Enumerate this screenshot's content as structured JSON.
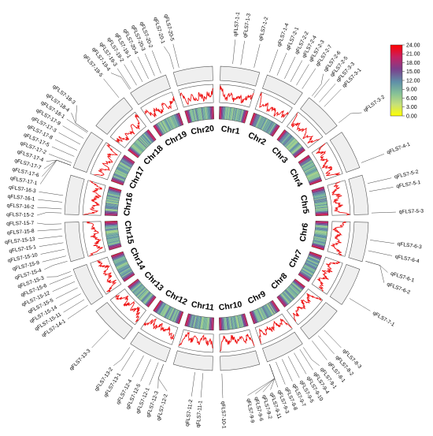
{
  "legend": {
    "ticks": [
      "24.00",
      "21.00",
      "18.00",
      "15.00",
      "12.00",
      "9.00",
      "6.00",
      "3.00",
      "0.00"
    ],
    "colors": [
      "#ff0000",
      "#c62262",
      "#7b3f8c",
      "#5f8fa8",
      "#84c098",
      "#c6e07a",
      "#ffff00"
    ]
  },
  "chromosomes": [
    {
      "name": "Chr1",
      "start": 1.5,
      "end": 16.5,
      "qtls": [
        {
          "name": "qFLS7-1-1",
          "pos": 6
        },
        {
          "name": "qFLS7-1-3",
          "pos": 9
        },
        {
          "name": "qFLS7-1-2",
          "pos": 14
        }
      ]
    },
    {
      "name": "Chr2",
      "start": 19.5,
      "end": 34.5,
      "qtls": [
        {
          "name": "qFLS7-1-4",
          "pos": 20
        },
        {
          "name": "qFLS7-2-1",
          "pos": 23
        },
        {
          "name": "qFLS7-2-2",
          "pos": 26
        },
        {
          "name": "qFLS7-2-4",
          "pos": 28.5
        },
        {
          "name": "qFLS7-2-3",
          "pos": 31
        },
        {
          "name": "qFLS7-2-7",
          "pos": 33.5
        }
      ]
    },
    {
      "name": "Chr3",
      "start": 37.5,
      "end": 52.5,
      "qtls": [
        {
          "name": "qFLS7-2-6",
          "pos": 36.5
        },
        {
          "name": "qFLS7-2-5",
          "pos": 39
        },
        {
          "name": "qFLS7-3-3",
          "pos": 41.5
        },
        {
          "name": "qFLS7-3-1",
          "pos": 44
        },
        {
          "name": "qFLS7-3-2",
          "pos": 54
        }
      ]
    },
    {
      "name": "Chr4",
      "start": 55.5,
      "end": 70.5,
      "qtls": [
        {
          "name": "qFLS7-4-1",
          "pos": 69
        }
      ]
    },
    {
      "name": "Chr5",
      "start": 73.5,
      "end": 88.5,
      "qtls": [
        {
          "name": "qFLS7-5-2",
          "pos": 77
        },
        {
          "name": "qFLS7-5-1",
          "pos": 80
        },
        {
          "name": "qFLS7-5-3",
          "pos": 88
        }
      ]
    },
    {
      "name": "Chr6",
      "start": 91.5,
      "end": 106.5,
      "qtls": [
        {
          "name": "qFLS7-6-3",
          "pos": 98
        },
        {
          "name": "qFLS7-6-4",
          "pos": 102
        },
        {
          "name": "qFLS7-6-1",
          "pos": 107.5
        },
        {
          "name": "qFLS7-6-2",
          "pos": 111
        }
      ]
    },
    {
      "name": "Chr7",
      "start": 109.5,
      "end": 124.5,
      "qtls": [
        {
          "name": "qFLS7-7-1",
          "pos": 121
        }
      ]
    },
    {
      "name": "Chr8",
      "start": 127.5,
      "end": 142.5,
      "qtls": [
        {
          "name": "qFLS7-8-3",
          "pos": 136
        },
        {
          "name": "qFLS7-8-2",
          "pos": 139
        },
        {
          "name": "qFLS7-8-1",
          "pos": 142
        }
      ]
    },
    {
      "name": "Chr9",
      "start": 145.5,
      "end": 160.5,
      "qtls": [
        {
          "name": "qFLS7-9-1",
          "pos": 145
        },
        {
          "name": "qFLS7-9-4",
          "pos": 147.5
        },
        {
          "name": "qFLS7-9-10",
          "pos": 150
        },
        {
          "name": "qFLS7-9-5",
          "pos": 152.5
        },
        {
          "name": "qFLS7-9-7",
          "pos": 155
        },
        {
          "name": "qFLS7-9-8",
          "pos": 157.5
        },
        {
          "name": "qFLS7-9-3",
          "pos": 160
        },
        {
          "name": "qFLS7-9-11",
          "pos": 162.5
        },
        {
          "name": "qFLS7-9-2",
          "pos": 165
        },
        {
          "name": "qFLS7-9-6",
          "pos": 167.5
        },
        {
          "name": "qFLS7-9-9",
          "pos": 170
        }
      ]
    },
    {
      "name": "Chr10",
      "start": 163.5,
      "end": 178.5,
      "qtls": [
        {
          "name": "qFLS7-10-1",
          "pos": 178
        }
      ]
    },
    {
      "name": "Chr11",
      "start": 181.5,
      "end": 196.5,
      "qtls": [
        {
          "name": "qFLS7-11-1",
          "pos": 185
        },
        {
          "name": "qFLS7-11-2",
          "pos": 188
        }
      ]
    },
    {
      "name": "Chr12",
      "start": 199.5,
      "end": 214.5,
      "qtls": [
        {
          "name": "qFLS7-12-2",
          "pos": 196
        },
        {
          "name": "qFLS7-12-3",
          "pos": 199
        },
        {
          "name": "qFLS7-12-1",
          "pos": 202
        },
        {
          "name": "qFLS7-12-5",
          "pos": 205
        },
        {
          "name": "qFLS7-12-4",
          "pos": 208
        },
        {
          "name": "qFLS7-13-1",
          "pos": 212
        },
        {
          "name": "qFLS7-13-2",
          "pos": 215
        }
      ]
    },
    {
      "name": "Chr13",
      "start": 217.5,
      "end": 232.5,
      "qtls": [
        {
          "name": "qFLS7-13-3",
          "pos": 224
        }
      ]
    },
    {
      "name": "Chr14",
      "start": 235.5,
      "end": 250.5,
      "qtls": [
        {
          "name": "qFLS7-14-1",
          "pos": 236
        },
        {
          "name": "qFLS7-15-11",
          "pos": 238.5
        },
        {
          "name": "qFLS7-15-14",
          "pos": 241
        },
        {
          "name": "qFLS7-15-5",
          "pos": 243.5
        },
        {
          "name": "qFLS7-15-12",
          "pos": 246
        },
        {
          "name": "qFLS7-15-6",
          "pos": 248.5
        },
        {
          "name": "qFLS7-15-3",
          "pos": 251
        }
      ]
    },
    {
      "name": "Chr15",
      "start": 253.5,
      "end": 268.5,
      "qtls": [
        {
          "name": "qFLS7-15-4",
          "pos": 253.5
        },
        {
          "name": "qFLS7-15-9",
          "pos": 256
        },
        {
          "name": "qFLS7-15-10",
          "pos": 258.5
        },
        {
          "name": "qFLS7-15-1",
          "pos": 261
        },
        {
          "name": "qFLS7-15-13",
          "pos": 263.5
        },
        {
          "name": "qFLS7-15-8",
          "pos": 266
        },
        {
          "name": "qFLS7-15-7",
          "pos": 268.5
        }
      ]
    },
    {
      "name": "Chr16",
      "start": 271.5,
      "end": 286.5,
      "qtls": [
        {
          "name": "qFLS7-15-2",
          "pos": 271
        },
        {
          "name": "qFLS7-16-2",
          "pos": 273.5
        },
        {
          "name": "qFLS7-16-1",
          "pos": 276
        },
        {
          "name": "qFLS7-16-3",
          "pos": 278.5
        }
      ]
    },
    {
      "name": "Chr17",
      "start": 289.5,
      "end": 304.5,
      "qtls": [
        {
          "name": "qFLS7-17-1",
          "pos": 281
        },
        {
          "name": "qFLS7-17-6",
          "pos": 283.5
        },
        {
          "name": "qFLS7-17-7",
          "pos": 286
        },
        {
          "name": "qFLS7-17-4",
          "pos": 288.5
        },
        {
          "name": "qFLS7-17-2",
          "pos": 291
        },
        {
          "name": "qFLS7-17-5",
          "pos": 293.5
        },
        {
          "name": "qFLS7-17-8",
          "pos": 296
        },
        {
          "name": "qFLS7-17-3",
          "pos": 298.5
        },
        {
          "name": "qFLS7-17-9",
          "pos": 301
        },
        {
          "name": "qFLS7-18-1",
          "pos": 303.5
        },
        {
          "name": "qFLS7-18-4",
          "pos": 306
        },
        {
          "name": "qFLS7-18-3",
          "pos": 309
        }
      ]
    },
    {
      "name": "Chr18",
      "start": 307.5,
      "end": 322.5,
      "qtls": [
        {
          "name": "qFLS7-19-5",
          "pos": 321
        }
      ]
    },
    {
      "name": "Chr19",
      "start": 325.5,
      "end": 340.5,
      "qtls": [
        {
          "name": "qFLS7-19-4",
          "pos": 324
        },
        {
          "name": "qFLS7-19-3",
          "pos": 326.5
        },
        {
          "name": "qFLS7-19-2",
          "pos": 329
        },
        {
          "name": "qFLS7-19-1",
          "pos": 331.5
        },
        {
          "name": "qFLS7-20-4",
          "pos": 334
        },
        {
          "name": "qFLS7-20-3",
          "pos": 336.5
        },
        {
          "name": "qFLS7-20-2",
          "pos": 339
        }
      ]
    },
    {
      "name": "Chr20",
      "start": 343.5,
      "end": 358.5,
      "qtls": [
        {
          "name": "qFLS7-20-1",
          "pos": 343
        },
        {
          "name": "qFLS7-20-5",
          "pos": 346
        }
      ]
    }
  ]
}
